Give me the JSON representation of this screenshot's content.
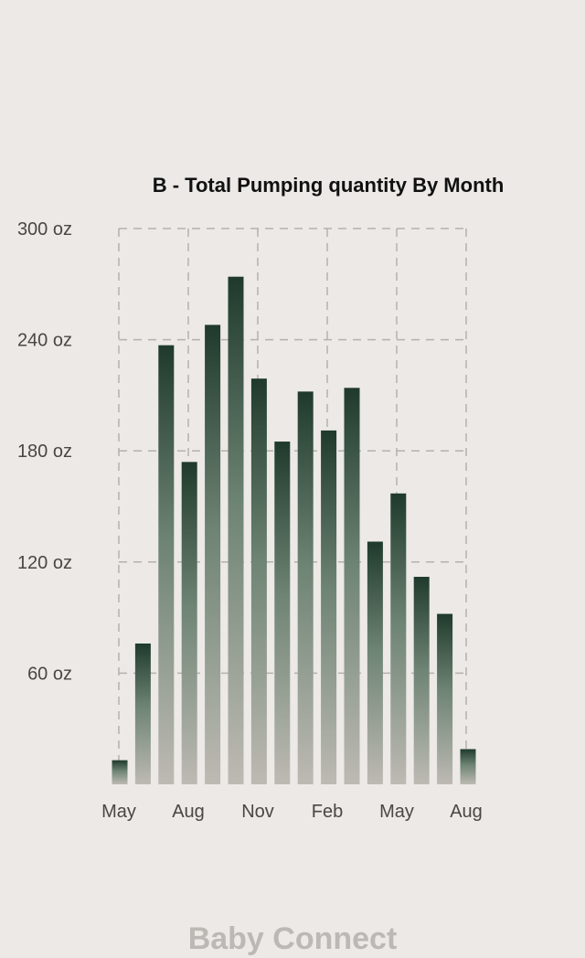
{
  "chart_data": {
    "type": "bar",
    "title": "B - Total Pumping quantity By Month",
    "xlabel": "",
    "ylabel": "",
    "unit": "oz",
    "ylim": [
      0,
      300
    ],
    "yticks": [
      60,
      120,
      180,
      240,
      300
    ],
    "ytick_labels": [
      "60 oz",
      "120 oz",
      "180 oz",
      "240 oz",
      "300 oz"
    ],
    "xtick_labels": [
      "May",
      "Aug",
      "Nov",
      "Feb",
      "May",
      "Aug"
    ],
    "values": [
      13,
      76,
      237,
      174,
      248,
      274,
      219,
      185,
      212,
      191,
      214,
      131,
      157,
      112,
      92,
      19
    ],
    "grid": true,
    "bar_gradient": [
      "#1F3A2C",
      "#BDBAB3"
    ],
    "grid_color": "#B5B1AD"
  },
  "footer": {
    "brand": "Baby Connect"
  }
}
